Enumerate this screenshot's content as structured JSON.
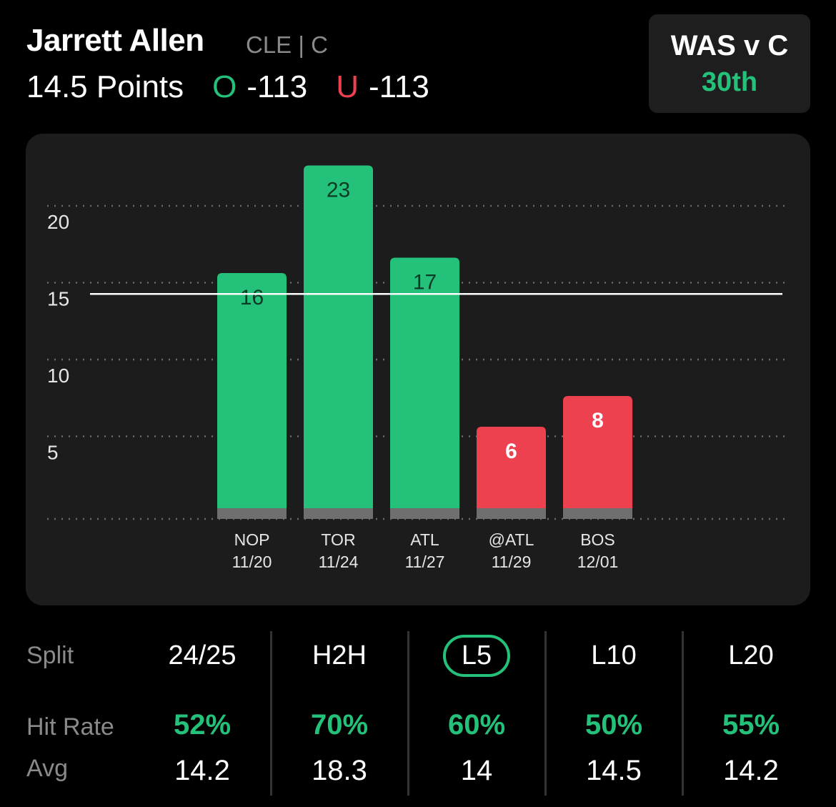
{
  "header": {
    "player_name": "Jarrett Allen",
    "team_position": "CLE | C",
    "prop_line": "14.5 Points",
    "over_letter": "O",
    "over_odds": "-113",
    "under_letter": "U",
    "under_odds": "-113"
  },
  "matchup": {
    "title": "WAS v C",
    "rank": "30th"
  },
  "colors": {
    "over": "#24c17a",
    "under": "#ee4150",
    "panel": "#1c1c1c",
    "muted": "#8a8a8a"
  },
  "chart_data": {
    "type": "bar",
    "categories": [
      "NOP",
      "TOR",
      "ATL",
      "@ATL",
      "BOS"
    ],
    "dates": [
      "11/20",
      "11/24",
      "11/27",
      "11/29",
      "12/01"
    ],
    "values": [
      16,
      23,
      17,
      6,
      8
    ],
    "line": 14.5,
    "yticks": [
      5,
      10,
      15,
      20
    ],
    "grid": true
  },
  "stats": {
    "labels": {
      "split": "Split",
      "hit_rate": "Hit Rate",
      "avg": "Avg"
    },
    "columns": [
      {
        "split": "24/25",
        "hit_rate": "52%",
        "avg": "14.2",
        "selected": false
      },
      {
        "split": "H2H",
        "hit_rate": "70%",
        "avg": "18.3",
        "selected": false
      },
      {
        "split": "L5",
        "hit_rate": "60%",
        "avg": "14",
        "selected": true
      },
      {
        "split": "L10",
        "hit_rate": "50%",
        "avg": "14.5",
        "selected": false
      },
      {
        "split": "L20",
        "hit_rate": "55%",
        "avg": "14.2",
        "selected": false
      }
    ]
  }
}
